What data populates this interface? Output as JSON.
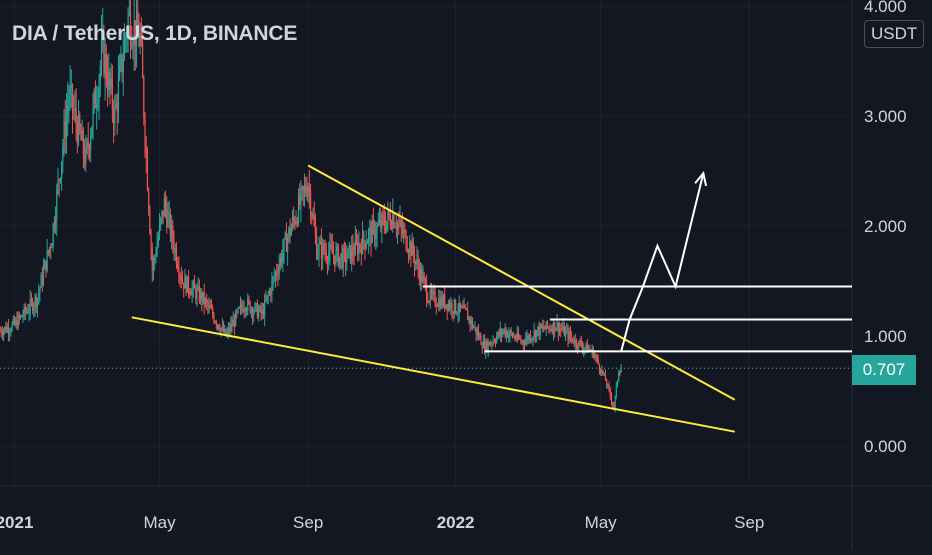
{
  "header": {
    "title": "DIA / TetherUS, 1D, BINANCE",
    "currency": "USDT"
  },
  "chart_data": {
    "type": "candlestick",
    "title": "DIA / TetherUS, 1D, BINANCE",
    "y_axis": {
      "unit": "USDT",
      "ticks": [
        "0.000",
        "1.000",
        "2.000",
        "3.000",
        "4.000"
      ],
      "ylim": [
        -0.1,
        4.0
      ]
    },
    "x_axis": {
      "ticks": [
        "2021",
        "May",
        "Sep",
        "2022",
        "May",
        "Sep"
      ],
      "range": [
        "2020-12-20",
        "2022-11-25"
      ]
    },
    "last_price": {
      "value": 0.707,
      "label": "0.707"
    },
    "price_path": [
      [
        "2020-12-20",
        1.05
      ],
      [
        "2021-01-01",
        1.1
      ],
      [
        "2021-01-20",
        1.35
      ],
      [
        "2021-02-01",
        1.9
      ],
      [
        "2021-02-15",
        3.2
      ],
      [
        "2021-03-01",
        2.6
      ],
      [
        "2021-03-15",
        3.6
      ],
      [
        "2021-03-25",
        3.0
      ],
      [
        "2021-04-05",
        3.9
      ],
      [
        "2021-04-15",
        3.7
      ],
      [
        "2021-04-25",
        1.6
      ],
      [
        "2021-05-05",
        2.2
      ],
      [
        "2021-05-20",
        1.5
      ],
      [
        "2021-06-05",
        1.35
      ],
      [
        "2021-06-25",
        1.0
      ],
      [
        "2021-07-10",
        1.3
      ],
      [
        "2021-07-25",
        1.2
      ],
      [
        "2021-08-15",
        1.9
      ],
      [
        "2021-09-01",
        2.4
      ],
      [
        "2021-09-08",
        1.8
      ],
      [
        "2021-10-01",
        1.7
      ],
      [
        "2021-10-20",
        1.9
      ],
      [
        "2021-11-10",
        2.1
      ],
      [
        "2021-11-25",
        1.8
      ],
      [
        "2021-12-10",
        1.35
      ],
      [
        "2021-12-25",
        1.3
      ],
      [
        "2022-01-10",
        1.2
      ],
      [
        "2022-01-25",
        0.9
      ],
      [
        "2022-02-10",
        1.05
      ],
      [
        "2022-02-25",
        0.95
      ],
      [
        "2022-03-10",
        1.05
      ],
      [
        "2022-03-25",
        1.1
      ],
      [
        "2022-04-10",
        0.95
      ],
      [
        "2022-04-25",
        0.85
      ],
      [
        "2022-05-05",
        0.6
      ],
      [
        "2022-05-12",
        0.35
      ],
      [
        "2022-05-16",
        0.7
      ],
      [
        "2022-05-18",
        0.707
      ]
    ],
    "drawings": {
      "upper_trendline": [
        [
          "2021-09-01",
          2.55
        ],
        [
          "2022-08-20",
          0.42
        ]
      ],
      "lower_trendline": [
        [
          "2021-04-08",
          1.17
        ],
        [
          "2022-08-20",
          0.13
        ]
      ],
      "horizontal_levels": [
        {
          "value": 1.45,
          "from": "2021-12-05",
          "to": "2022-11-25"
        },
        {
          "value": 1.15,
          "from": "2022-03-20",
          "to": "2022-11-25"
        },
        {
          "value": 0.86,
          "from": "2022-01-25",
          "to": "2022-11-25"
        }
      ],
      "projection_arrow": [
        [
          "2022-05-18",
          0.86
        ],
        [
          "2022-05-25",
          1.15
        ],
        [
          "2022-06-05",
          1.45
        ],
        [
          "2022-06-17",
          1.82
        ],
        [
          "2022-07-02",
          1.45
        ],
        [
          "2022-07-25",
          2.48
        ]
      ]
    },
    "colors": {
      "background": "#131722",
      "up": "#26a69a",
      "down": "#ef5350",
      "trendline": "#ffeb3b",
      "levels": "#ffffff",
      "price_line": "#26a69a"
    }
  }
}
